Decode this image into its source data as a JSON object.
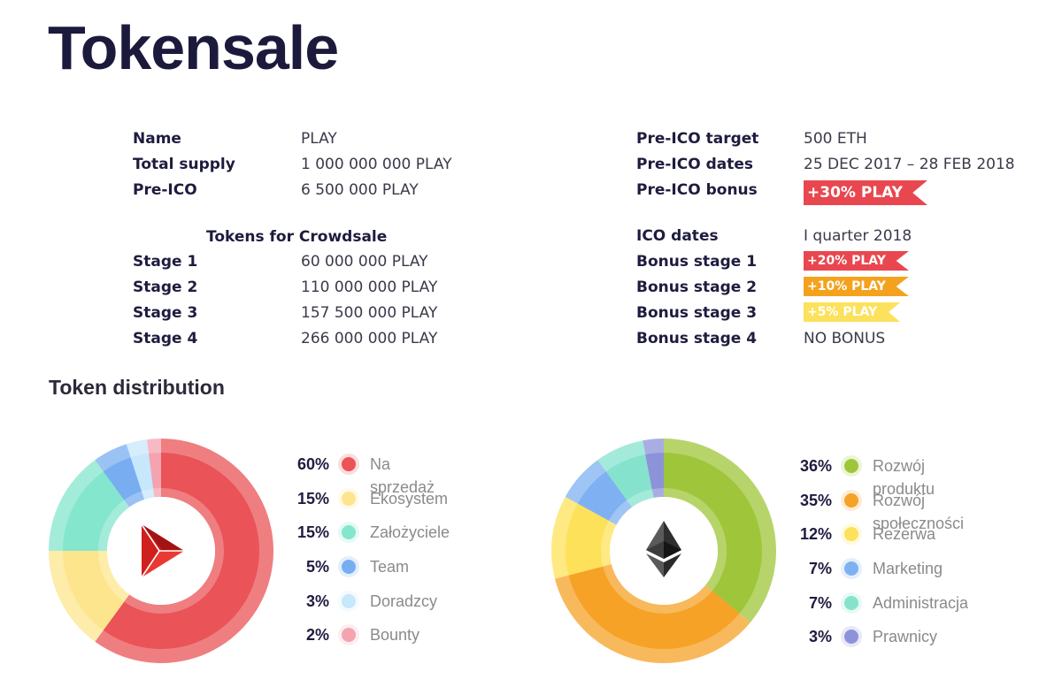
{
  "page": {
    "title": "Tokensale",
    "section_title": "Token distribution"
  },
  "left_info": [
    {
      "key": "Name",
      "value": "PLAY"
    },
    {
      "key": "Total supply",
      "value": "1 000 000 000 PLAY"
    },
    {
      "key": "Pre-ICO",
      "value": "6 500 000 PLAY"
    }
  ],
  "crowdsale": {
    "heading": "Tokens for Crowdsale",
    "stages": [
      {
        "key": "Stage 1",
        "value": "60 000 000 PLAY"
      },
      {
        "key": "Stage 2",
        "value": "110 000 000 PLAY"
      },
      {
        "key": "Stage 3",
        "value": "157 500 000 PLAY"
      },
      {
        "key": "Stage 4",
        "value": "266 000 000 PLAY"
      }
    ]
  },
  "right_info": [
    {
      "key": "Pre-ICO target",
      "value": "500 ETH"
    },
    {
      "key": "Pre-ICO dates",
      "value": "25 DEC 2017 – 28 FEB 2018"
    },
    {
      "key": "Pre-ICO bonus",
      "tag": "+30% PLAY",
      "tag_color": "#e8474f"
    }
  ],
  "ico_info": [
    {
      "key": "ICO dates",
      "value": "I quarter 2018"
    },
    {
      "key": "Bonus stage 1",
      "tag": "+20% PLAY",
      "tag_color": "#e8474f"
    },
    {
      "key": "Bonus stage 2",
      "tag": "+10% PLAY",
      "tag_color": "#f4a21e"
    },
    {
      "key": "Bonus stage 3",
      "tag": "+5% PLAY",
      "tag_color": "#fce15c"
    },
    {
      "key": "Bonus stage 4",
      "value": "NO BONUS"
    }
  ],
  "chart_data": [
    {
      "type": "pie",
      "center_icon": "play-logo-icon",
      "categories": [
        "Na sprzedaż",
        "Ekosystem",
        "Założyciele",
        "Team",
        "Doradzcy",
        "Bounty"
      ],
      "values": [
        60,
        15,
        15,
        5,
        3,
        2
      ],
      "labels": [
        "60%",
        "15%",
        "15%",
        "5%",
        "3%",
        "2%"
      ],
      "colors": [
        "#ea5357",
        "#fde58e",
        "#84e6cd",
        "#78aef1",
        "#c7e7fb",
        "#f4a3b1"
      ],
      "legend": "right"
    },
    {
      "type": "pie",
      "center_icon": "ethereum-icon",
      "categories": [
        "Rozwój produktu",
        "Rozwój społeczności",
        "Rezerwa",
        "Marketing",
        "Administracja",
        "Prawnicy"
      ],
      "values": [
        36,
        35,
        12,
        7,
        7,
        3
      ],
      "labels": [
        "36%",
        "35%",
        "12%",
        "7%",
        "7%",
        "3%"
      ],
      "colors": [
        "#9fc63a",
        "#f6a226",
        "#fde15a",
        "#7fb1f2",
        "#85e3cd",
        "#8c93d8"
      ],
      "legend": "right"
    }
  ]
}
